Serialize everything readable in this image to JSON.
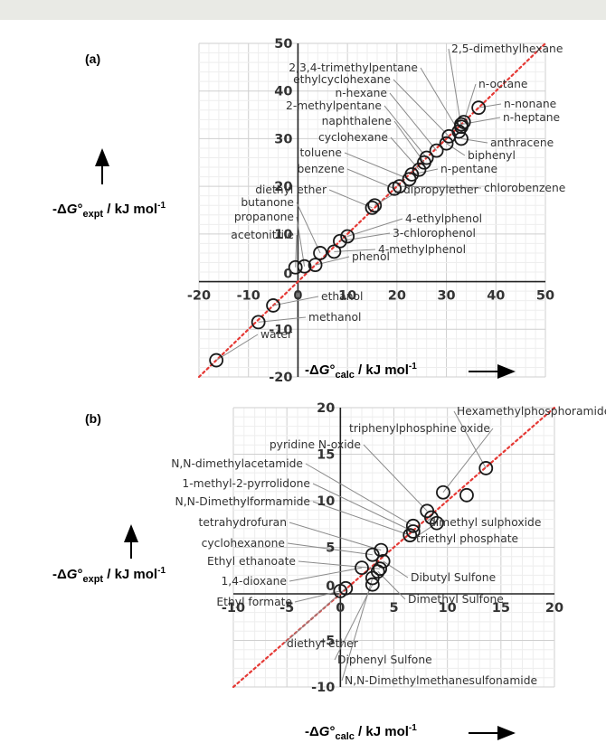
{
  "chart_data": [
    {
      "panel_label": "(a)",
      "type": "scatter",
      "xlim": [
        -20,
        50
      ],
      "ylim": [
        -20,
        50
      ],
      "xticks": [
        -20,
        -10,
        0,
        10,
        20,
        30,
        40,
        50
      ],
      "yticks": [
        -20,
        -10,
        0,
        10,
        20,
        30,
        40,
        50
      ],
      "xlabel": "-ΔG°calc / kJ mol-1",
      "ylabel": "-ΔG°expt / kJ mol-1",
      "grid": true,
      "reference_line": "y = x (red dotted)",
      "points": [
        {
          "name": "water",
          "x": -16.5,
          "y": -16.5
        },
        {
          "name": "methanol",
          "x": -8,
          "y": -8.5
        },
        {
          "name": "ethanol",
          "x": -5,
          "y": -5
        },
        {
          "name": "acetonitrile",
          "x": -0.5,
          "y": 3
        },
        {
          "name": "propanone",
          "x": 1.3,
          "y": 3.2
        },
        {
          "name": "phenol",
          "x": 3.5,
          "y": 3.5
        },
        {
          "name": "butanone",
          "x": 4.5,
          "y": 6
        },
        {
          "name": "4-methylphenol",
          "x": 7.3,
          "y": 6.3
        },
        {
          "name": "3-chlorophenol",
          "x": 8.5,
          "y": 8.5
        },
        {
          "name": "4-ethylphenol",
          "x": 10,
          "y": 9.5
        },
        {
          "name": "diethyl ether",
          "x": 15,
          "y": 15.5
        },
        {
          "name": "dipropylether",
          "x": 15.5,
          "y": 16
        },
        {
          "name": "benzene",
          "x": 19.5,
          "y": 19.5
        },
        {
          "name": "chlorobenzene",
          "x": 20.5,
          "y": 20
        },
        {
          "name": "toluene",
          "x": 22.5,
          "y": 21.5
        },
        {
          "name": "n-pentane",
          "x": 23,
          "y": 22.5
        },
        {
          "name": "cyclohexane",
          "x": 24.5,
          "y": 23.5
        },
        {
          "name": "naphthalene",
          "x": 25.5,
          "y": 25
        },
        {
          "name": "2-methylpentane",
          "x": 26,
          "y": 26
        },
        {
          "name": "n-hexane",
          "x": 28,
          "y": 27.5
        },
        {
          "name": "biphenyl",
          "x": 30,
          "y": 29
        },
        {
          "name": "ethylcyclohexane",
          "x": 30.5,
          "y": 30.5
        },
        {
          "name": "2,3,4-trimethylpentane",
          "x": 32.5,
          "y": 31.5
        },
        {
          "name": "anthracene",
          "x": 33,
          "y": 30
        },
        {
          "name": "2,5-dimethylhexane",
          "x": 33,
          "y": 32.5
        },
        {
          "name": "n-heptane",
          "x": 33,
          "y": 33
        },
        {
          "name": "n-octane",
          "x": 33.5,
          "y": 33.5
        },
        {
          "name": "n-nonane",
          "x": 36.5,
          "y": 36.5
        }
      ]
    },
    {
      "panel_label": "(b)",
      "type": "scatter",
      "xlim": [
        -10,
        20
      ],
      "ylim": [
        -10,
        20
      ],
      "xticks": [
        -10,
        -5,
        0,
        5,
        10,
        15,
        20
      ],
      "yticks": [
        -10,
        -5,
        0,
        5,
        10,
        15,
        20
      ],
      "xlabel": "-ΔG°calc / kJ mol-1",
      "ylabel": "-ΔG°expt / kJ mol-1",
      "grid": true,
      "reference_line": "y = x (red dotted)",
      "points": [
        {
          "name": "Ethyl formate",
          "x": 0,
          "y": 0.3
        },
        {
          "name": "diethyl ether",
          "x": 0.5,
          "y": 0.6
        },
        {
          "name": "1,4-dioxane",
          "x": 2,
          "y": 2.8
        },
        {
          "name": "Diphenyl Sulfone",
          "x": 3,
          "y": 1
        },
        {
          "name": "N,N-Dimethylmethanesulfonamide",
          "x": 3,
          "y": 1.7
        },
        {
          "name": "Ethyl ethanoate",
          "x": 3.7,
          "y": 2.7
        },
        {
          "name": "Dimethyl Sulfone",
          "x": 3.5,
          "y": 2.4
        },
        {
          "name": "cyclohexanone",
          "x": 3,
          "y": 4.2
        },
        {
          "name": "Dibutyl Sulfone",
          "x": 4,
          "y": 3.5
        },
        {
          "name": "tetrahydrofuran",
          "x": 3.8,
          "y": 4.7
        },
        {
          "name": "N,N-Dimethylformamide",
          "x": 6.5,
          "y": 6.3
        },
        {
          "name": "1-methyl-2-pyrrolidone",
          "x": 6.8,
          "y": 6.7
        },
        {
          "name": "N,N-dimethylacetamide",
          "x": 6.8,
          "y": 7.3
        },
        {
          "name": "triethyl phosphate",
          "x": 9,
          "y": 7.6
        },
        {
          "name": "dimethyl sulphoxide",
          "x": 8.5,
          "y": 8.2
        },
        {
          "name": "pyridine N-oxide",
          "x": 8.1,
          "y": 8.9
        },
        {
          "name": "triphenylphosphine oxide",
          "x": 9.6,
          "y": 10.9
        },
        {
          "name": "N,N-Dimethylformamide (2)",
          "x": 11.8,
          "y": 10.6
        },
        {
          "name": "Hexamethylphosphoramide",
          "x": 13.6,
          "y": 13.5
        }
      ]
    }
  ]
}
